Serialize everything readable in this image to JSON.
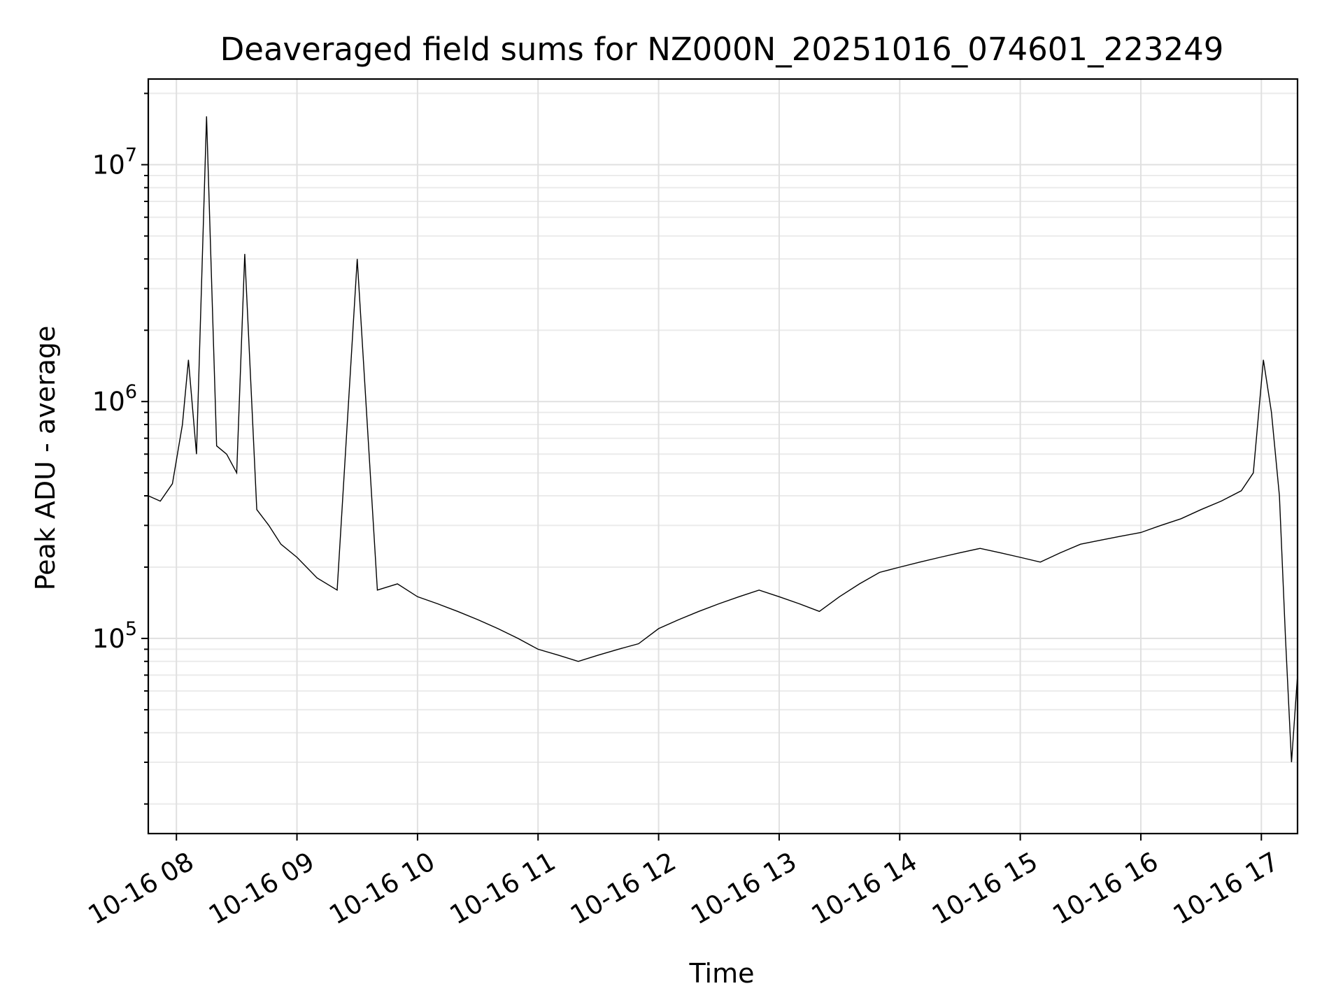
{
  "chart_data": {
    "type": "line",
    "title": "Deaveraged field sums for NZ000N_20251016_074601_223249",
    "xlabel": "Time",
    "ylabel": "Peak ADU - average",
    "yscale": "log",
    "ylim": [
      15000,
      23000000
    ],
    "xlim": [
      "10-16 07:46",
      "10-16 17:18"
    ],
    "grid": true,
    "x_ticks": [
      "10-16 08",
      "10-16 09",
      "10-16 10",
      "10-16 11",
      "10-16 12",
      "10-16 13",
      "10-16 14",
      "10-16 15",
      "10-16 16",
      "10-16 17"
    ],
    "y_ticks": [
      {
        "value": 100000,
        "base": "10",
        "exp": "5"
      },
      {
        "value": 1000000,
        "base": "10",
        "exp": "6"
      },
      {
        "value": 10000000,
        "base": "10",
        "exp": "7"
      }
    ],
    "series": [
      {
        "x": [
          "10-16 07:46",
          "10-16 07:52",
          "10-16 07:58",
          "10-16 08:03",
          "10-16 08:06",
          "10-16 08:10",
          "10-16 08:15",
          "10-16 08:20",
          "10-16 08:25",
          "10-16 08:30",
          "10-16 08:34",
          "10-16 08:40",
          "10-16 08:46",
          "10-16 08:52",
          "10-16 09:00",
          "10-16 09:10",
          "10-16 09:20",
          "10-16 09:30",
          "10-16 09:40",
          "10-16 09:50",
          "10-16 10:00",
          "10-16 10:10",
          "10-16 10:20",
          "10-16 10:30",
          "10-16 10:40",
          "10-16 10:50",
          "10-16 11:00",
          "10-16 11:10",
          "10-16 11:20",
          "10-16 11:30",
          "10-16 11:40",
          "10-16 11:50",
          "10-16 12:00",
          "10-16 12:10",
          "10-16 12:20",
          "10-16 12:30",
          "10-16 12:40",
          "10-16 12:50",
          "10-16 13:00",
          "10-16 13:10",
          "10-16 13:20",
          "10-16 13:30",
          "10-16 13:40",
          "10-16 13:50",
          "10-16 14:00",
          "10-16 14:10",
          "10-16 14:20",
          "10-16 14:30",
          "10-16 14:40",
          "10-16 14:50",
          "10-16 15:00",
          "10-16 15:10",
          "10-16 15:20",
          "10-16 15:30",
          "10-16 15:40",
          "10-16 15:50",
          "10-16 16:00",
          "10-16 16:10",
          "10-16 16:20",
          "10-16 16:30",
          "10-16 16:40",
          "10-16 16:50",
          "10-16 16:56",
          "10-16 17:01",
          "10-16 17:05",
          "10-16 17:09",
          "10-16 17:12",
          "10-16 17:15",
          "10-16 17:18"
        ],
        "y": [
          400000,
          380000,
          450000,
          800000,
          1500000,
          600000,
          16000000,
          650000,
          600000,
          500000,
          4200000,
          350000,
          300000,
          250000,
          220000,
          180000,
          160000,
          4000000,
          160000,
          170000,
          150000,
          140000,
          130000,
          120000,
          110000,
          100000,
          90000,
          85000,
          80000,
          85000,
          90000,
          95000,
          110000,
          120000,
          130000,
          140000,
          150000,
          160000,
          150000,
          140000,
          130000,
          150000,
          170000,
          190000,
          200000,
          210000,
          220000,
          230000,
          240000,
          230000,
          220000,
          210000,
          230000,
          250000,
          260000,
          270000,
          280000,
          300000,
          320000,
          350000,
          380000,
          420000,
          500000,
          1500000,
          900000,
          400000,
          100000,
          30000,
          70000
        ]
      }
    ]
  }
}
